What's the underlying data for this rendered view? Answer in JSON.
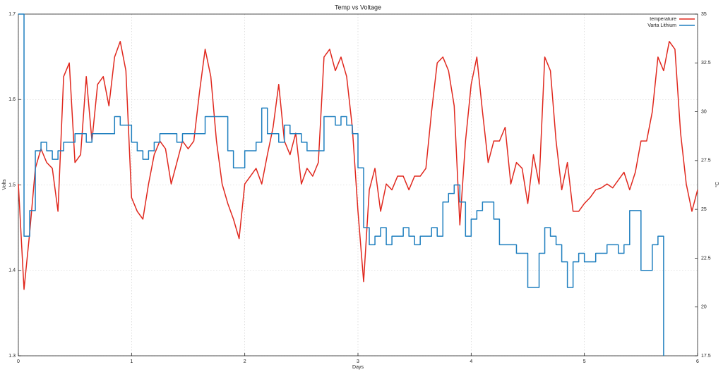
{
  "chart_data": {
    "type": "line",
    "title": "Temp vs Voltage",
    "xlabel": "Days",
    "ylabel": "Volts",
    "y2label": "°C",
    "x": [
      0,
      0.05,
      0.1,
      0.15,
      0.2,
      0.25,
      0.3,
      0.35,
      0.4,
      0.45,
      0.5,
      0.55,
      0.6,
      0.65,
      0.7,
      0.75,
      0.8,
      0.85,
      0.9,
      0.95,
      1,
      1.05,
      1.1,
      1.15,
      1.2,
      1.25,
      1.3,
      1.35,
      1.4,
      1.45,
      1.5,
      1.55,
      1.6,
      1.65,
      1.7,
      1.75,
      1.8,
      1.85,
      1.9,
      1.95,
      2,
      2.05,
      2.1,
      2.15,
      2.2,
      2.25,
      2.3,
      2.35,
      2.4,
      2.45,
      2.5,
      2.55,
      2.6,
      2.65,
      2.7,
      2.75,
      2.8,
      2.85,
      2.9,
      2.95,
      3,
      3.05,
      3.1,
      3.15,
      3.2,
      3.25,
      3.3,
      3.35,
      3.4,
      3.45,
      3.5,
      3.55,
      3.6,
      3.65,
      3.7,
      3.75,
      3.8,
      3.85,
      3.9,
      3.95,
      4,
      4.05,
      4.1,
      4.15,
      4.2,
      4.25,
      4.3,
      4.35,
      4.4,
      4.45,
      4.5,
      4.55,
      4.6,
      4.65,
      4.7,
      4.75,
      4.8,
      4.85,
      4.9,
      4.95,
      5,
      5.05,
      5.1,
      5.15,
      5.2,
      5.25,
      5.3,
      5.35,
      5.4,
      5.45,
      5.5,
      5.55,
      5.6,
      5.65,
      5.7,
      5.75,
      5.8,
      5.85,
      5.9,
      5.95,
      6
    ],
    "series": [
      {
        "name": "temperature",
        "color": "#e0281e",
        "axis": "y2",
        "step": false,
        "values": [
          26.3,
          20.9,
          23.8,
          27.1,
          28.1,
          27.4,
          27.1,
          24.9,
          31.8,
          32.5,
          27.4,
          27.8,
          31.8,
          28.5,
          31.4,
          31.8,
          30.3,
          32.8,
          33.6,
          32.1,
          25.6,
          24.9,
          24.5,
          26.3,
          27.8,
          28.5,
          28.1,
          26.3,
          27.4,
          28.5,
          28.1,
          28.5,
          31.0,
          33.2,
          31.8,
          28.5,
          26.3,
          25.3,
          24.5,
          23.5,
          26.3,
          26.7,
          27.1,
          26.3,
          27.8,
          29.2,
          31.4,
          28.5,
          27.8,
          28.9,
          26.3,
          27.1,
          26.7,
          27.4,
          32.8,
          33.2,
          32.1,
          32.8,
          31.8,
          29.2,
          24.9,
          21.3,
          26.0,
          27.1,
          24.9,
          26.3,
          26.0,
          26.7,
          26.7,
          26.0,
          26.7,
          26.7,
          27.1,
          30.0,
          32.5,
          32.8,
          32.1,
          30.3,
          24.2,
          28.5,
          31.4,
          32.8,
          30.0,
          27.4,
          28.5,
          28.5,
          29.2,
          26.3,
          27.4,
          27.1,
          25.3,
          27.8,
          26.3,
          32.8,
          32.1,
          28.5,
          26.0,
          27.4,
          24.9,
          24.9,
          25.3,
          25.6,
          26.0,
          26.1,
          26.3,
          26.1,
          26.5,
          26.9,
          26.0,
          26.9,
          28.5,
          28.5,
          30.0,
          32.8,
          32.1,
          33.6,
          33.2,
          28.9,
          26.3,
          24.9,
          26.0
        ]
      },
      {
        "name": "Varta Lithium",
        "color": "#1f7fbf",
        "axis": "y",
        "step": true,
        "values": [
          1.7,
          1.44,
          1.47,
          1.54,
          1.55,
          1.54,
          1.53,
          1.54,
          1.55,
          1.55,
          1.56,
          1.56,
          1.55,
          1.56,
          1.56,
          1.56,
          1.56,
          1.58,
          1.57,
          1.57,
          1.55,
          1.54,
          1.53,
          1.54,
          1.55,
          1.56,
          1.56,
          1.56,
          1.55,
          1.56,
          1.56,
          1.56,
          1.56,
          1.58,
          1.58,
          1.58,
          1.58,
          1.54,
          1.52,
          1.52,
          1.54,
          1.54,
          1.55,
          1.59,
          1.56,
          1.56,
          1.55,
          1.57,
          1.56,
          1.56,
          1.55,
          1.54,
          1.54,
          1.54,
          1.58,
          1.58,
          1.57,
          1.58,
          1.57,
          1.56,
          1.52,
          1.45,
          1.43,
          1.44,
          1.45,
          1.43,
          1.44,
          1.44,
          1.45,
          1.44,
          1.43,
          1.44,
          1.44,
          1.45,
          1.44,
          1.48,
          1.49,
          1.5,
          1.48,
          1.44,
          1.46,
          1.47,
          1.48,
          1.48,
          1.46,
          1.43,
          1.43,
          1.43,
          1.42,
          1.42,
          1.38,
          1.38,
          1.42,
          1.45,
          1.44,
          1.43,
          1.41,
          1.38,
          1.41,
          1.42,
          1.41,
          1.41,
          1.42,
          1.42,
          1.43,
          1.43,
          1.42,
          1.43,
          1.47,
          1.47,
          1.4,
          1.4,
          1.43,
          1.44,
          1.3,
          null,
          null,
          null,
          null,
          null,
          null
        ]
      }
    ],
    "xlim": [
      0,
      6
    ],
    "xticks": [
      0,
      1,
      2,
      3,
      4,
      5,
      6
    ],
    "ylim": [
      1.3,
      1.7
    ],
    "yticks": [
      1.3,
      1.4,
      1.5,
      1.6,
      1.7
    ],
    "y2lim": [
      17.5,
      35
    ],
    "y2ticks": [
      17.5,
      20,
      22.5,
      25,
      27.5,
      30,
      32.5,
      35
    ],
    "grid": true,
    "legend": "upper right"
  }
}
